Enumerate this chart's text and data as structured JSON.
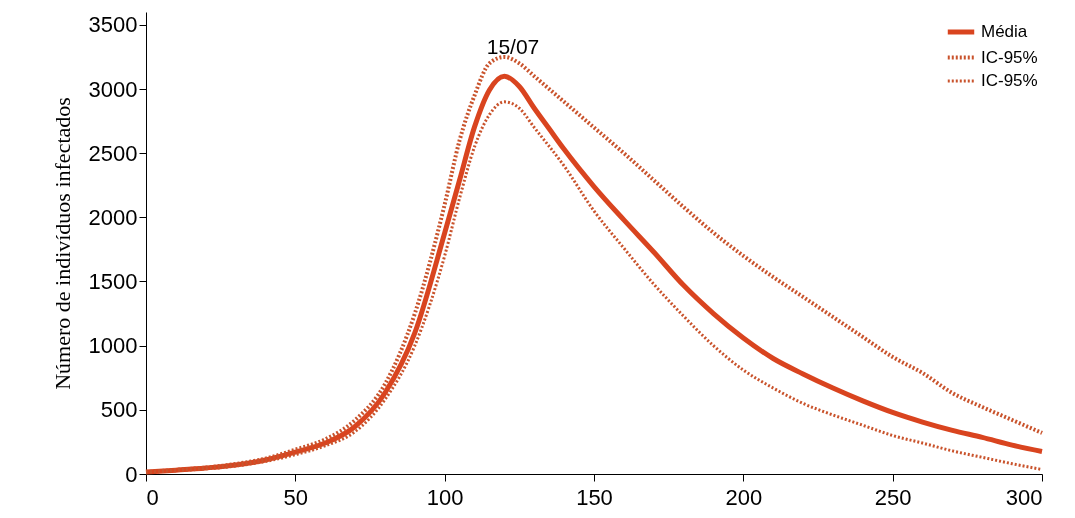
{
  "chart_data": {
    "type": "line",
    "ylabel": "Número de indivíduos infectados",
    "xlim": [
      0,
      300
    ],
    "ylim": [
      0,
      3600
    ],
    "xticks": [
      0,
      50,
      100,
      150,
      200,
      250,
      300
    ],
    "yticks": [
      0,
      500,
      1000,
      1500,
      2000,
      2500,
      3000,
      3500
    ],
    "legend": "top right",
    "grid": false,
    "annotations": [
      "15/07"
    ],
    "series": [
      {
        "name": "Média",
        "color": "#d9441f",
        "line_style": "solid",
        "x": [
          0,
          10,
          20,
          30,
          40,
          50,
          60,
          70,
          80,
          90,
          100,
          105,
          110,
          115,
          120,
          125,
          130,
          135,
          140,
          150,
          160,
          170,
          180,
          190,
          200,
          210,
          220,
          230,
          240,
          250,
          260,
          270,
          280,
          290,
          300
        ],
        "values": [
          15,
          30,
          47,
          70,
          109,
          171,
          241,
          370,
          631,
          1099,
          1878,
          2291,
          2705,
          2993,
          3100,
          3020,
          2850,
          2690,
          2530,
          2240,
          1980,
          1730,
          1470,
          1250,
          1060,
          900,
          780,
          670,
          570,
          480,
          405,
          340,
          285,
          225,
          175
        ]
      },
      {
        "name": "IC-95%",
        "color": "#c9532c",
        "line_style": "dotted",
        "x": [
          0,
          10,
          20,
          30,
          40,
          50,
          60,
          70,
          80,
          90,
          100,
          105,
          110,
          115,
          120,
          125,
          130,
          140,
          150,
          160,
          170,
          180,
          190,
          200,
          210,
          220,
          230,
          240,
          250,
          260,
          270,
          280,
          290,
          300
        ],
        "values": [
          15,
          32,
          50,
          78,
          120,
          190,
          270,
          420,
          700,
          1250,
          2100,
          2600,
          2950,
          3200,
          3250,
          3200,
          3100,
          2900,
          2700,
          2500,
          2290,
          2080,
          1880,
          1700,
          1535,
          1380,
          1224,
          1068,
          912,
          787,
          631,
          522,
          421,
          320
        ]
      },
      {
        "name": "IC-95%",
        "color": "#c9532c",
        "line_style": "dotted",
        "x": [
          0,
          10,
          20,
          30,
          40,
          50,
          60,
          70,
          80,
          90,
          100,
          105,
          110,
          115,
          120,
          125,
          130,
          140,
          150,
          160,
          170,
          180,
          190,
          200,
          210,
          220,
          230,
          240,
          250,
          260,
          270,
          280,
          290,
          300
        ],
        "values": [
          12,
          26,
          40,
          62,
          98,
          150,
          220,
          330,
          580,
          1000,
          1700,
          2150,
          2550,
          2800,
          2900,
          2850,
          2700,
          2400,
          2050,
          1760,
          1480,
          1230,
          1000,
          810,
          670,
          550,
          460,
          380,
          300,
          241,
          180,
          130,
          80,
          35
        ]
      }
    ]
  }
}
